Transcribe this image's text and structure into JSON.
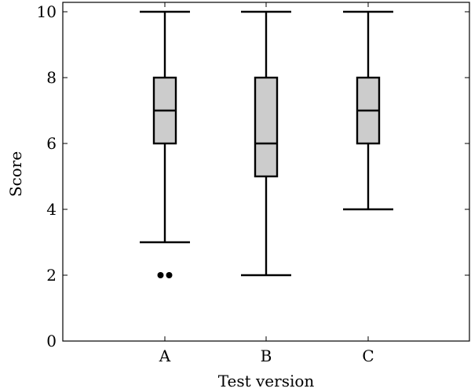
{
  "chart_data": {
    "type": "box",
    "title": "",
    "xlabel": "Test version",
    "ylabel": "Score",
    "ylim": [
      0,
      10.5
    ],
    "yticks": [
      0,
      2,
      4,
      6,
      8,
      10
    ],
    "grid": false,
    "categories": [
      "A",
      "B",
      "C"
    ],
    "boxes": [
      {
        "category": "A",
        "whisker_low": 3,
        "q1": 6,
        "median": 7,
        "q3": 8,
        "whisker_high": 10,
        "outliers": [
          2,
          2
        ]
      },
      {
        "category": "B",
        "whisker_low": 2,
        "q1": 5,
        "median": 6,
        "q3": 8,
        "whisker_high": 10,
        "outliers": []
      },
      {
        "category": "C",
        "whisker_low": 4,
        "q1": 6,
        "median": 7,
        "q3": 8,
        "whisker_high": 10,
        "outliers": []
      }
    ],
    "box_fill": "#cccccc",
    "line_color": "#000000"
  }
}
